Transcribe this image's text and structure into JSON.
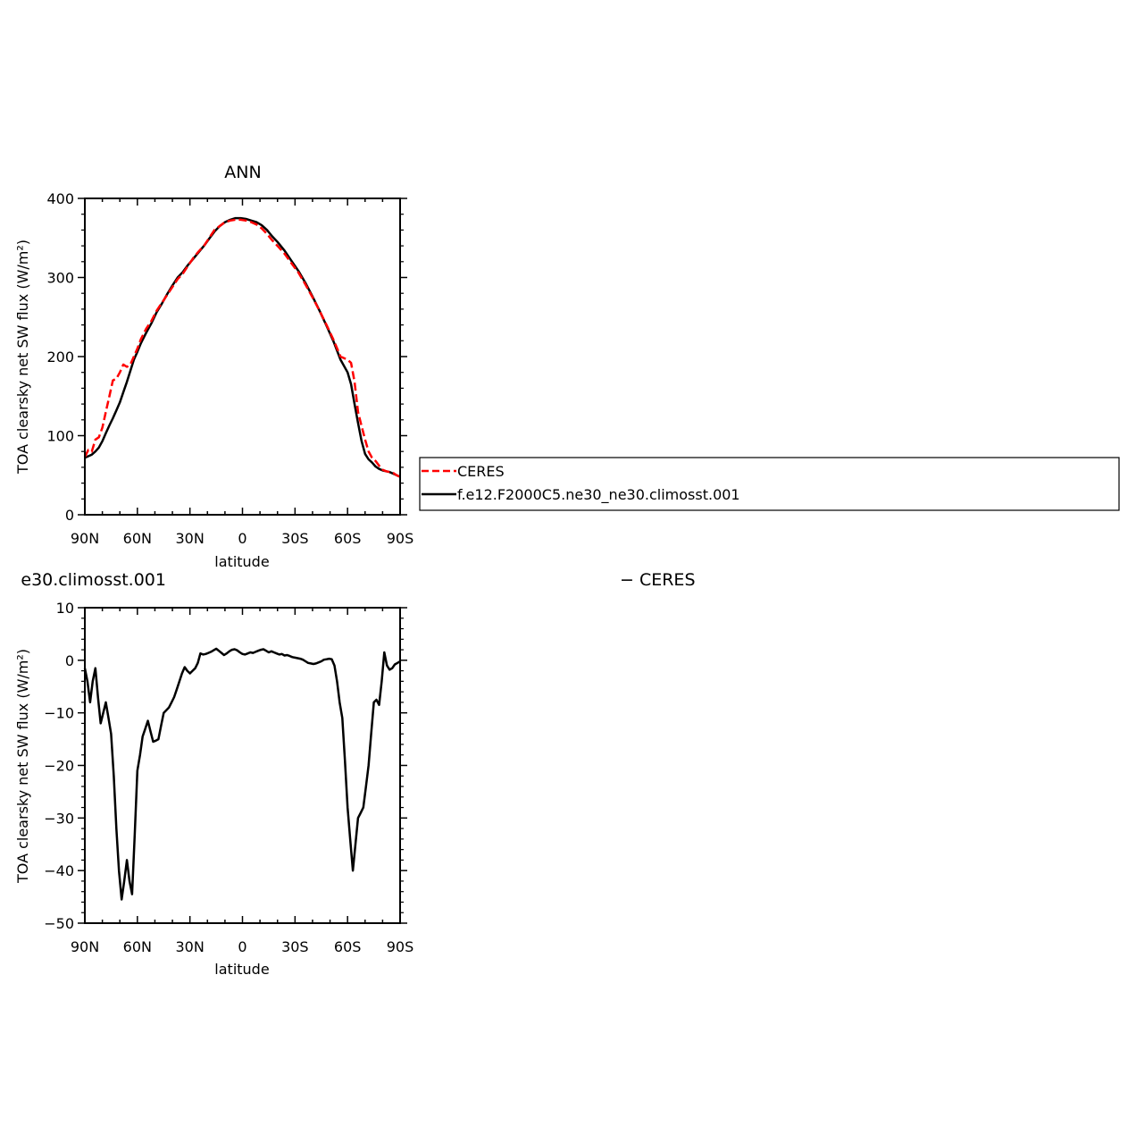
{
  "figure": {
    "top_title": "ANN",
    "bottom_title_left": "e30.climosst.001",
    "bottom_title_right": "− CERES"
  },
  "legend": {
    "entries": [
      {
        "label": "CERES",
        "color": "#ff0000",
        "dash": "dashed"
      },
      {
        "label": "f.e12.F2000C5.ne30_ne30.climosst.001",
        "color": "#000000",
        "dash": "solid"
      }
    ]
  },
  "chart_data": [
    {
      "type": "line",
      "title": "ANN",
      "xlabel": "latitude",
      "ylabel": "TOA clearsky net SW flux (W/m²)",
      "xlim": [
        90,
        -90
      ],
      "ylim": [
        0,
        400
      ],
      "x_ticks": [
        90,
        60,
        30,
        0,
        -30,
        -60,
        -90
      ],
      "x_tick_labels": [
        "90N",
        "60N",
        "30N",
        "0",
        "30S",
        "60S",
        "90S"
      ],
      "y_ticks": [
        0,
        100,
        200,
        300,
        400
      ],
      "y_tick_labels": [
        "0",
        "100",
        "200",
        "300",
        "400"
      ],
      "grid": false,
      "legend_position": "right",
      "series": [
        {
          "name": "CERES",
          "color": "#ff0000",
          "dash": "dashed",
          "x": [
            90,
            88,
            86,
            84,
            82,
            80,
            78,
            76,
            74,
            72,
            70,
            68,
            66,
            64,
            62,
            60,
            58,
            55,
            52,
            49,
            46,
            43,
            40,
            37,
            34,
            31,
            28,
            25,
            22,
            19,
            16,
            13,
            10,
            7,
            4,
            1,
            -2,
            -5,
            -8,
            -11,
            -14,
            -17,
            -20,
            -24,
            -28,
            -32,
            -36,
            -40,
            -44,
            -48,
            -52,
            -56,
            -60,
            -62,
            -64,
            -66,
            -68,
            -70,
            -72,
            -74,
            -76,
            -78,
            -80,
            -82,
            -84,
            -86,
            -88,
            -90
          ],
          "values": [
            73,
            82,
            80,
            95,
            98,
            110,
            130,
            150,
            170,
            172,
            180,
            190,
            187,
            190,
            200,
            210,
            222,
            235,
            245,
            258,
            268,
            278,
            288,
            298,
            305,
            315,
            325,
            333,
            340,
            350,
            360,
            365,
            370,
            372,
            373,
            373,
            372,
            370,
            367,
            362,
            355,
            347,
            340,
            330,
            318,
            306,
            291,
            275,
            258,
            240,
            221,
            200,
            196,
            192,
            168,
            130,
            112,
            95,
            80,
            72,
            68,
            62,
            57,
            55,
            54,
            53,
            50,
            48
          ]
        },
        {
          "name": "f.e12.F2000C5.ne30_ne30.climosst.001",
          "color": "#000000",
          "dash": "solid",
          "x": [
            90,
            88,
            86,
            84,
            82,
            80,
            78,
            76,
            74,
            72,
            70,
            68,
            66,
            64,
            62,
            60,
            58,
            55,
            52,
            49,
            46,
            43,
            40,
            37,
            34,
            31,
            28,
            25,
            22,
            19,
            16,
            13,
            10,
            7,
            4,
            1,
            -2,
            -5,
            -8,
            -11,
            -14,
            -17,
            -20,
            -24,
            -28,
            -32,
            -36,
            -40,
            -44,
            -48,
            -52,
            -56,
            -60,
            -62,
            -64,
            -66,
            -68,
            -70,
            -72,
            -74,
            -76,
            -78,
            -80,
            -82,
            -84,
            -86,
            -88,
            -90
          ],
          "values": [
            72,
            74,
            76,
            80,
            85,
            93,
            103,
            113,
            122,
            132,
            142,
            155,
            168,
            182,
            196,
            206,
            217,
            230,
            242,
            256,
            267,
            279,
            290,
            300,
            307,
            316,
            324,
            332,
            340,
            349,
            358,
            365,
            370,
            373,
            375,
            375,
            374,
            372,
            370,
            366,
            360,
            352,
            345,
            334,
            321,
            308,
            293,
            276,
            258,
            239,
            219,
            196,
            180,
            165,
            140,
            116,
            93,
            77,
            70,
            66,
            61,
            58,
            56,
            55,
            54,
            52,
            50,
            48
          ]
        }
      ]
    },
    {
      "type": "line",
      "title": "e30.climosst.001 − CERES",
      "xlabel": "latitude",
      "ylabel": "TOA clearsky net SW flux (W/m²)",
      "xlim": [
        90,
        -90
      ],
      "ylim": [
        -50,
        10
      ],
      "x_ticks": [
        90,
        60,
        30,
        0,
        -30,
        -60,
        -90
      ],
      "x_tick_labels": [
        "90N",
        "60N",
        "30N",
        "0",
        "30S",
        "60S",
        "90S"
      ],
      "y_ticks": [
        -50,
        -40,
        -30,
        -20,
        -10,
        0,
        10
      ],
      "y_tick_labels": [
        "−50",
        "−40",
        "−30",
        "−20",
        "−10",
        "0",
        "10"
      ],
      "grid": false,
      "series": [
        {
          "color": "#000000",
          "dash": "solid",
          "x": [
            90,
            88.5,
            87,
            85.5,
            84,
            82.5,
            81,
            79.5,
            78,
            76.5,
            75,
            73.5,
            72,
            70.5,
            69,
            67.5,
            66,
            64.5,
            63,
            61.5,
            60,
            58.5,
            57,
            55.5,
            54,
            52.5,
            51,
            49.5,
            48,
            46.5,
            45,
            43.5,
            42,
            40.5,
            39,
            37.5,
            36,
            34.5,
            33,
            31.5,
            30,
            28.5,
            27,
            25.5,
            24,
            22.5,
            21,
            19.5,
            18,
            16.5,
            15,
            13.5,
            12,
            10.5,
            9,
            7.5,
            6,
            4.5,
            3,
            1.5,
            0,
            -1.5,
            -3,
            -4.5,
            -6,
            -7.5,
            -9,
            -10.5,
            -12,
            -13.5,
            -15,
            -16.5,
            -18,
            -19.5,
            -21,
            -22.5,
            -24,
            -25.5,
            -27,
            -28.5,
            -30,
            -31.5,
            -33,
            -34.5,
            -36,
            -37.5,
            -39,
            -40.5,
            -42,
            -43.5,
            -45,
            -46.5,
            -48,
            -49.5,
            -51,
            -52.5,
            -54,
            -55.5,
            -57,
            -58.5,
            -60,
            -61.5,
            -63,
            -64.5,
            -66,
            -67.5,
            -69,
            -70.5,
            -72,
            -73.5,
            -75,
            -76.5,
            -78,
            -79.5,
            -81,
            -82.5,
            -84,
            -85.5,
            -87,
            -88.5,
            -90
          ],
          "values": [
            -1.5,
            -4,
            -8,
            -4,
            -1.5,
            -7,
            -12,
            -10,
            -8,
            -11,
            -14,
            -22,
            -32,
            -40,
            -45.5,
            -42,
            -38,
            -42,
            -44.5,
            -33,
            -21,
            -18,
            -14.5,
            -13,
            -11.5,
            -13.5,
            -15.5,
            -15.3,
            -15,
            -12.5,
            -10,
            -9.5,
            -9,
            -8,
            -7,
            -5.5,
            -4,
            -2.5,
            -1.3,
            -2,
            -2.5,
            -2,
            -1.5,
            -0.5,
            1.3,
            1.1,
            1.2,
            1.4,
            1.6,
            1.9,
            2.2,
            1.8,
            1.4,
            1.0,
            1.3,
            1.7,
            2.0,
            2.1,
            1.9,
            1.5,
            1.2,
            1.1,
            1.3,
            1.5,
            1.4,
            1.6,
            1.8,
            2.0,
            2.1,
            1.8,
            1.5,
            1.7,
            1.5,
            1.3,
            1.1,
            1.2,
            0.9,
            1.0,
            0.8,
            0.6,
            0.5,
            0.4,
            0.3,
            0.1,
            -0.2,
            -0.5,
            -0.6,
            -0.7,
            -0.6,
            -0.4,
            -0.2,
            0.1,
            0.2,
            0.3,
            0.2,
            -1,
            -4,
            -8,
            -11,
            -19,
            -28,
            -34,
            -40,
            -35,
            -30,
            -29,
            -28,
            -24,
            -20,
            -14,
            -8,
            -7.5,
            -8.5,
            -4,
            1.5,
            -1,
            -1.8,
            -1.5,
            -0.8,
            -0.5,
            -0.2
          ]
        }
      ]
    }
  ]
}
